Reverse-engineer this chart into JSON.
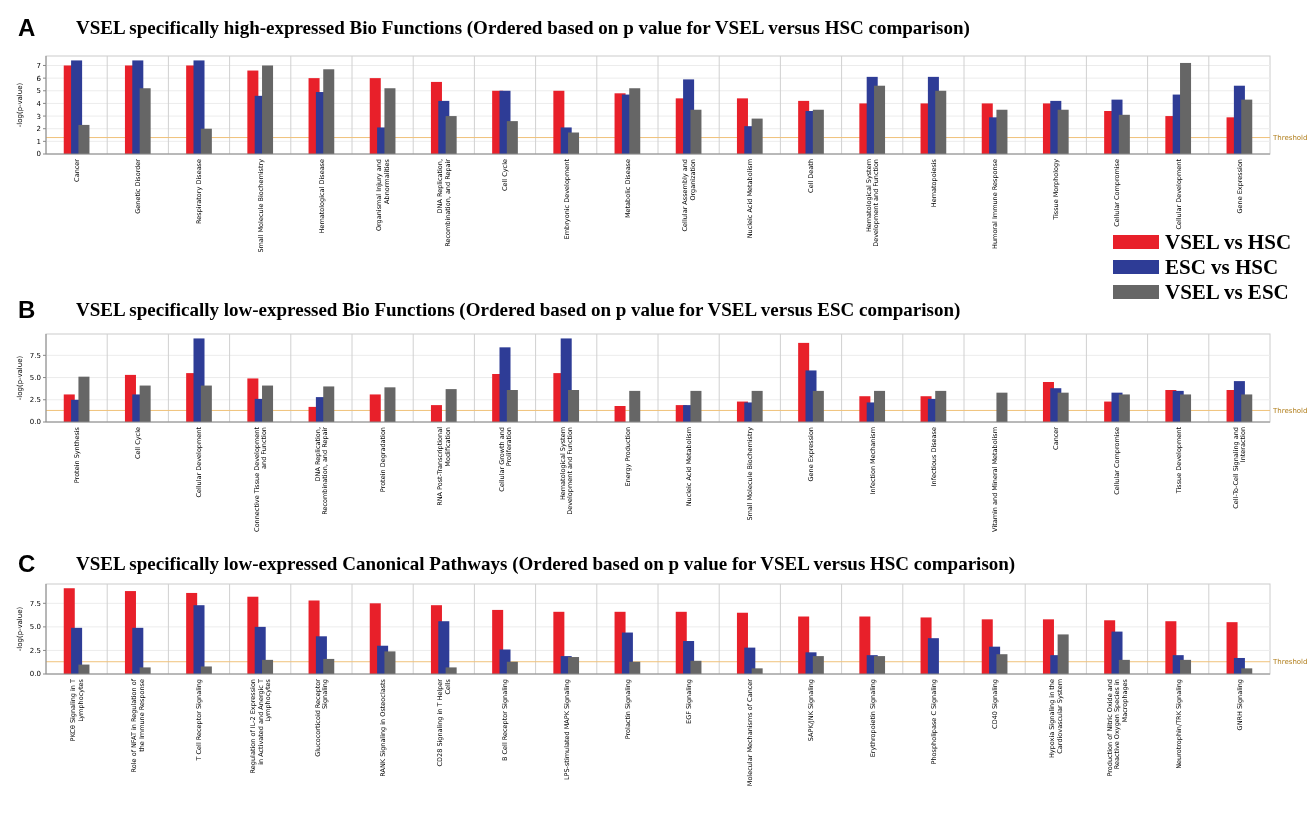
{
  "chart_data": [
    {
      "type": "bar",
      "title": "VSEL specifically high-expressed Bio Functions (Ordered based on p value for VSEL versus HSC comparison)",
      "annotations": [
        "A"
      ],
      "ylabel": "-log(p-value)",
      "categories": [
        "Cancer",
        "Genetic Disorder",
        "Respiratory Disease",
        "Small Molecule Biochemistry",
        "Hematological Disease",
        "Organismal Injury and Abnormalities",
        "DNA Replication, Recombination, and Repair",
        "Cell Cycle",
        "Embryonic Development",
        "Metabolic Disease",
        "Cellular Assembly and Organization",
        "Nucleic Acid Metabolism",
        "Cell Death",
        "Hematological System Development and Function",
        "Hematopoiesis",
        "Humoral Immune Response",
        "Tissue Morphology",
        "Cellular Compromise",
        "Cellular Development",
        "Gene Expression"
      ],
      "series": [
        {
          "name": "VSEL vs HSC",
          "color": "#e8202a",
          "values": [
            7.0,
            7.0,
            7.0,
            6.6,
            6.0,
            6.0,
            5.7,
            5.0,
            5.0,
            4.8,
            4.4,
            4.4,
            4.2,
            4.0,
            4.0,
            4.0,
            4.0,
            3.4,
            3.0,
            2.9
          ]
        },
        {
          "name": "ESC vs HSC",
          "color": "#2e3c96",
          "values": [
            7.4,
            7.4,
            7.4,
            4.6,
            4.9,
            2.1,
            4.2,
            5.0,
            2.1,
            4.7,
            5.9,
            2.2,
            3.4,
            6.1,
            6.1,
            2.9,
            4.2,
            4.3,
            4.7,
            5.4
          ]
        },
        {
          "name": "VSEL vs ESC",
          "color": "#666666",
          "values": [
            2.3,
            5.2,
            2.0,
            7.0,
            6.7,
            5.2,
            3.0,
            2.6,
            1.7,
            5.2,
            3.5,
            2.8,
            3.5,
            5.4,
            5.0,
            3.5,
            3.5,
            3.1,
            7.2,
            4.3
          ]
        }
      ],
      "ylim": [
        0,
        7.75
      ],
      "yticks": [
        0,
        1,
        2,
        3,
        4,
        5,
        6,
        7
      ],
      "grid": true,
      "legend": "bottom right",
      "ref_lines": [
        {
          "axis": "y",
          "value": 1.3,
          "label": "Threshold",
          "color": "#f0c27a"
        }
      ]
    },
    {
      "type": "bar",
      "title": "VSEL specifically low-expressed Bio Functions (Ordered based on p value for VSEL versus ESC comparison)",
      "annotations": [
        "B"
      ],
      "ylabel": "-log(p-value)",
      "categories": [
        "Protein Synthesis",
        "Cell Cycle",
        "Cellular Development",
        "Connective Tissue Development and Function",
        "DNA Replication, Recombination, and Repair",
        "Protein Degradation",
        "RNA Post-Transcriptional Modification",
        "Cellular Growth and Proliferation",
        "Hematological System Development and Function",
        "Energy Production",
        "Nucleic Acid Metabolism",
        "Small Molecule Biochemistry",
        "Gene Expression",
        "Infection Mechanism",
        "Infectious Disease",
        "Vitamin and Mineral Metabolism",
        "Cancer",
        "Cellular Compromise",
        "Tissue Development",
        "Cell-To-Cell Signaling and Interaction"
      ],
      "series": [
        {
          "color": "#e8202a",
          "values": [
            3.1,
            5.3,
            5.5,
            4.9,
            1.7,
            3.1,
            1.9,
            5.4,
            5.5,
            1.8,
            1.9,
            2.3,
            8.9,
            2.9,
            2.9,
            null,
            4.5,
            2.3,
            3.6,
            3.6
          ]
        },
        {
          "color": "#2e3c96",
          "values": [
            2.5,
            3.1,
            9.4,
            2.6,
            2.8,
            null,
            null,
            8.4,
            9.4,
            null,
            1.9,
            2.2,
            5.8,
            2.2,
            2.6,
            null,
            3.8,
            3.3,
            3.5,
            4.6
          ]
        },
        {
          "color": "#666666",
          "values": [
            5.1,
            4.1,
            4.1,
            4.1,
            4.0,
            3.9,
            3.7,
            3.6,
            3.6,
            3.5,
            3.5,
            3.5,
            3.5,
            3.5,
            3.5,
            3.3,
            3.3,
            3.1,
            3.1,
            3.1
          ]
        }
      ],
      "ylim": [
        0,
        9.9
      ],
      "yticks": [
        {
          "value": 0,
          "label": "0.0"
        },
        {
          "value": 2.5,
          "label": "2.5"
        },
        {
          "value": 5,
          "label": "5.0"
        },
        {
          "value": 7.5,
          "label": "7.5"
        }
      ],
      "grid": true,
      "ref_lines": [
        {
          "axis": "y",
          "value": 1.3,
          "label": "Threshold",
          "color": "#f0c27a"
        }
      ]
    },
    {
      "type": "bar",
      "title": "VSEL specifically low-expressed Canonical Pathways (Ordered based on p value for VSEL versus HSC comparison)",
      "annotations": [
        "C"
      ],
      "ylabel": "-log(p-value)",
      "categories": [
        "PKCθ Signaling in T Lymphocytes",
        "Role of NFAT in Regulation of the Immune Response",
        "T Cell Receptor Signaling",
        "Regulation of IL-2 Expression in Activated and Anergic T Lymphocytes",
        "Glucocorticoid Receptor Signaling",
        "RANK Signaling in Osteoclasts",
        "CD28 Signaling in T Helper Cells",
        "B Cell Receptor Signaling",
        "LPS-stimulated MAPK Signaling",
        "Prolactin Signaling",
        "EGF Signaling",
        "Molecular Mechanisms of Cancer",
        "SAPK/JNK Signaling",
        "Erythropoietin Signaling",
        "Phospholipase C Signaling",
        "CD40 Signaling",
        "Hypoxia Signaling in the Cardiovascular System",
        "Production of Nitric Oxide and Reactive Oxygen Species in Macrophages",
        "Neurotrophin/TRK Signaling",
        "GNRH Signaling"
      ],
      "series": [
        {
          "color": "#e8202a",
          "values": [
            9.1,
            8.8,
            8.6,
            8.2,
            7.8,
            7.5,
            7.3,
            6.8,
            6.6,
            6.6,
            6.6,
            6.5,
            6.1,
            6.1,
            6.0,
            5.8,
            5.8,
            5.7,
            5.6,
            5.5
          ]
        },
        {
          "color": "#2e3c96",
          "values": [
            4.9,
            4.9,
            7.3,
            5.0,
            4.0,
            3.0,
            5.6,
            2.6,
            1.9,
            4.4,
            3.5,
            2.8,
            2.3,
            2.0,
            3.8,
            2.9,
            2.0,
            4.5,
            2.0,
            1.7
          ]
        },
        {
          "color": "#666666",
          "values": [
            1.0,
            0.7,
            0.8,
            1.5,
            1.6,
            2.4,
            0.7,
            1.3,
            1.8,
            1.3,
            1.4,
            0.6,
            1.9,
            1.9,
            null,
            2.1,
            4.2,
            1.5,
            1.5,
            0.6
          ]
        }
      ],
      "ylim": [
        0,
        9.55
      ],
      "yticks": [
        {
          "value": 0,
          "label": "0.0"
        },
        {
          "value": 2.5,
          "label": "2.5"
        },
        {
          "value": 5,
          "label": "5.0"
        },
        {
          "value": 7.5,
          "label": "7.5"
        }
      ],
      "grid": true,
      "ref_lines": [
        {
          "axis": "y",
          "value": 1.3,
          "label": "Threshold",
          "color": "#f0c27a"
        }
      ]
    }
  ]
}
